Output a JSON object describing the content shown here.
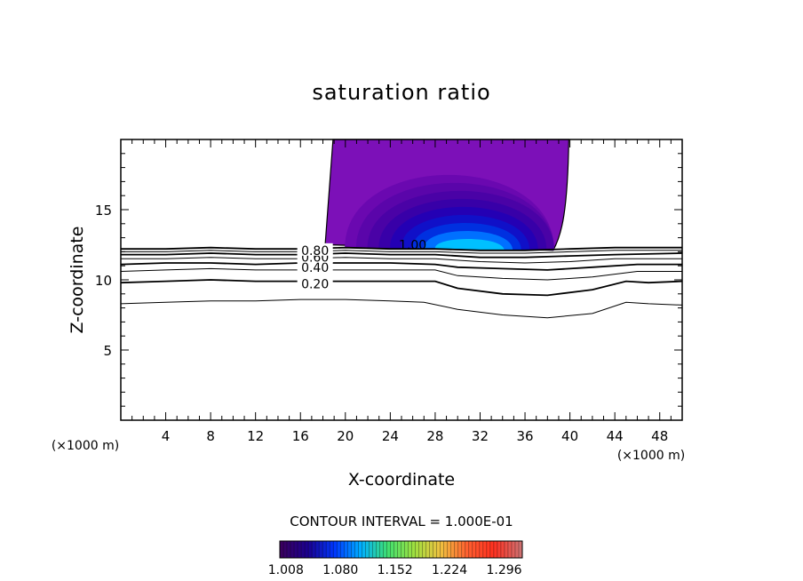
{
  "chart_data": {
    "type": "contour",
    "title": "saturation ratio",
    "xlabel": "X-coordinate",
    "ylabel": "Z-coordinate",
    "x_unit_label": "(×1000 m)",
    "z_unit_label": "(×1000 m)",
    "xlim": [
      0,
      50
    ],
    "ylim": [
      0,
      20
    ],
    "x_ticks": [
      4,
      8,
      12,
      16,
      20,
      24,
      28,
      32,
      36,
      40,
      44,
      48
    ],
    "y_ticks": [
      5,
      10,
      15
    ],
    "contour_interval_text": "CONTOUR INTERVAL = 1.000E-01",
    "contour_labels": [
      {
        "text": "0.20",
        "x": 17.3,
        "y": 9.7
      },
      {
        "text": "0.40",
        "x": 17.3,
        "y": 10.9
      },
      {
        "text": "0.60",
        "x": 17.3,
        "y": 11.6
      },
      {
        "text": "0.80",
        "x": 17.3,
        "y": 12.1
      },
      {
        "text": "1.00",
        "x": 26.0,
        "y": 12.5
      }
    ],
    "contours": [
      {
        "level": 0.1,
        "points": [
          [
            0,
            8.3
          ],
          [
            4,
            8.4
          ],
          [
            8,
            8.5
          ],
          [
            12,
            8.5
          ],
          [
            16,
            8.6
          ],
          [
            20,
            8.6
          ],
          [
            24,
            8.5
          ],
          [
            27,
            8.4
          ],
          [
            30,
            7.9
          ],
          [
            34,
            7.5
          ],
          [
            38,
            7.3
          ],
          [
            42,
            7.6
          ],
          [
            45,
            8.4
          ],
          [
            47,
            8.3
          ],
          [
            50,
            8.2
          ]
        ]
      },
      {
        "level": 0.2,
        "points": [
          [
            0,
            9.8
          ],
          [
            4,
            9.9
          ],
          [
            8,
            10.0
          ],
          [
            12,
            9.9
          ],
          [
            16,
            9.9
          ],
          [
            20,
            9.9
          ],
          [
            24,
            9.9
          ],
          [
            28,
            9.9
          ],
          [
            30,
            9.4
          ],
          [
            34,
            9.0
          ],
          [
            38,
            8.9
          ],
          [
            42,
            9.3
          ],
          [
            45,
            9.9
          ],
          [
            47,
            9.8
          ],
          [
            50,
            9.9
          ]
        ]
      },
      {
        "level": 0.3,
        "points": [
          [
            0,
            10.6
          ],
          [
            4,
            10.7
          ],
          [
            8,
            10.8
          ],
          [
            12,
            10.7
          ],
          [
            16,
            10.7
          ],
          [
            20,
            10.7
          ],
          [
            24,
            10.7
          ],
          [
            28,
            10.7
          ],
          [
            30,
            10.3
          ],
          [
            34,
            10.1
          ],
          [
            38,
            10.0
          ],
          [
            42,
            10.2
          ],
          [
            46,
            10.6
          ],
          [
            50,
            10.6
          ]
        ]
      },
      {
        "level": 0.4,
        "points": [
          [
            0,
            11.1
          ],
          [
            4,
            11.2
          ],
          [
            8,
            11.2
          ],
          [
            12,
            11.1
          ],
          [
            16,
            11.2
          ],
          [
            20,
            11.2
          ],
          [
            24,
            11.2
          ],
          [
            28,
            11.1
          ],
          [
            30,
            10.9
          ],
          [
            34,
            10.8
          ],
          [
            38,
            10.7
          ],
          [
            42,
            10.9
          ],
          [
            46,
            11.1
          ],
          [
            50,
            11.1
          ]
        ]
      },
      {
        "level": 0.5,
        "points": [
          [
            0,
            11.5
          ],
          [
            4,
            11.5
          ],
          [
            8,
            11.6
          ],
          [
            12,
            11.5
          ],
          [
            16,
            11.5
          ],
          [
            20,
            11.6
          ],
          [
            24,
            11.5
          ],
          [
            28,
            11.5
          ],
          [
            32,
            11.3
          ],
          [
            36,
            11.2
          ],
          [
            40,
            11.3
          ],
          [
            44,
            11.5
          ],
          [
            50,
            11.5
          ]
        ]
      },
      {
        "level": 0.6,
        "points": [
          [
            0,
            11.8
          ],
          [
            4,
            11.8
          ],
          [
            8,
            11.9
          ],
          [
            12,
            11.8
          ],
          [
            16,
            11.8
          ],
          [
            20,
            11.9
          ],
          [
            24,
            11.8
          ],
          [
            28,
            11.8
          ],
          [
            32,
            11.6
          ],
          [
            36,
            11.6
          ],
          [
            40,
            11.7
          ],
          [
            44,
            11.8
          ],
          [
            50,
            11.9
          ]
        ]
      },
      {
        "level": 0.7,
        "points": [
          [
            0,
            12.0
          ],
          [
            4,
            12.0
          ],
          [
            8,
            12.1
          ],
          [
            12,
            12.0
          ],
          [
            16,
            12.0
          ],
          [
            20,
            12.1
          ],
          [
            24,
            12.0
          ],
          [
            28,
            12.0
          ],
          [
            32,
            11.9
          ],
          [
            36,
            11.9
          ],
          [
            40,
            12.0
          ],
          [
            44,
            12.1
          ],
          [
            50,
            12.1
          ]
        ]
      },
      {
        "level": 0.8,
        "points": [
          [
            0,
            12.2
          ],
          [
            4,
            12.2
          ],
          [
            8,
            12.3
          ],
          [
            12,
            12.2
          ],
          [
            16,
            12.2
          ],
          [
            20,
            12.3
          ],
          [
            24,
            12.2
          ],
          [
            28,
            12.2
          ],
          [
            32,
            12.1
          ],
          [
            36,
            12.1
          ],
          [
            40,
            12.2
          ],
          [
            44,
            12.3
          ],
          [
            50,
            12.3
          ]
        ]
      }
    ],
    "colorbar": {
      "tick_labels": [
        "1.008",
        "1.080",
        "1.152",
        "1.224",
        "1.296"
      ],
      "range": [
        1.0,
        1.32
      ],
      "colors": [
        "#3a0060",
        "#1a0090",
        "#0038ff",
        "#00b0ff",
        "#40e070",
        "#a0e040",
        "#f0c040",
        "#ff6030",
        "#ff3020",
        "#d07070"
      ]
    },
    "shaded_region": {
      "x_range": [
        18.0,
        40.0
      ],
      "z_range": [
        12.1,
        20.0
      ],
      "shades": [
        {
          "value": 1.0,
          "color": "#7c10b8"
        },
        {
          "value": 1.01,
          "color": "#6a08b0"
        },
        {
          "value": 1.02,
          "color": "#5a05aa"
        },
        {
          "value": 1.03,
          "color": "#4a02a6"
        },
        {
          "value": 1.05,
          "color": "#3800a8"
        },
        {
          "value": 1.07,
          "color": "#2400b4"
        },
        {
          "value": 1.09,
          "color": "#1010c8"
        },
        {
          "value": 1.11,
          "color": "#0030e0"
        },
        {
          "value": 1.14,
          "color": "#0070ff"
        },
        {
          "value": 1.18,
          "color": "#00c0ff"
        }
      ]
    }
  }
}
